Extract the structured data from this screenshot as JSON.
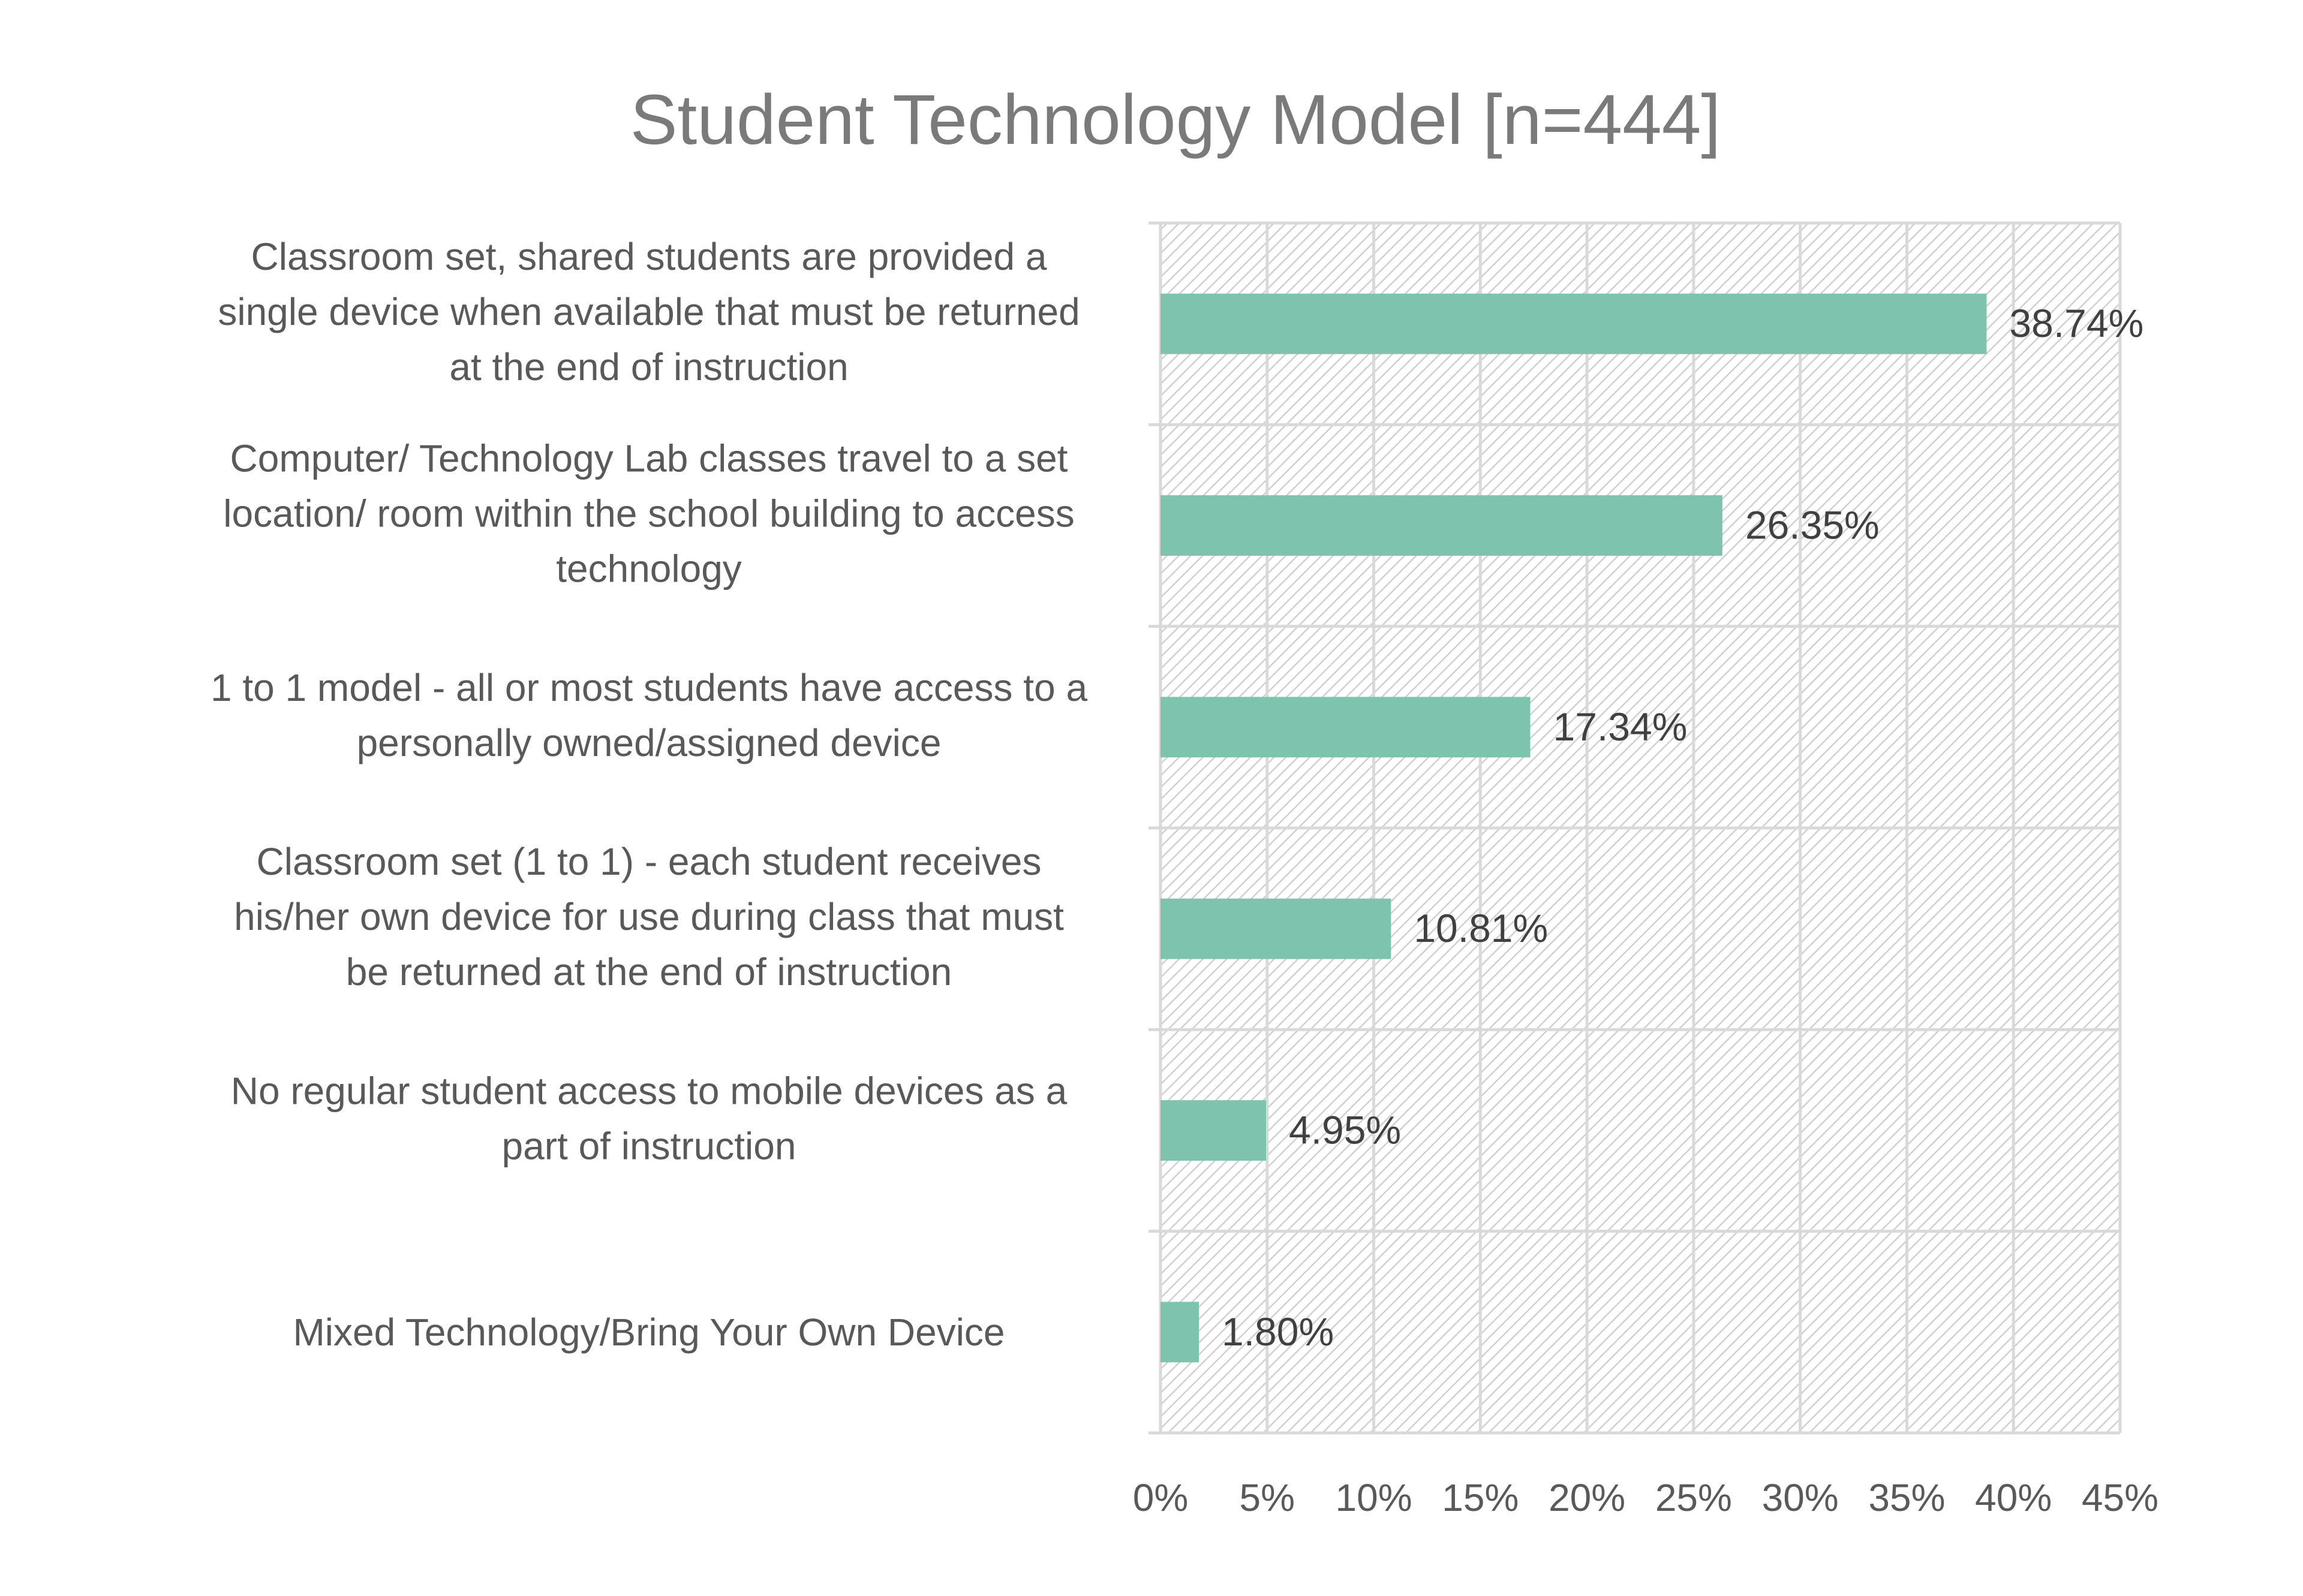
{
  "chart_data": {
    "type": "bar",
    "orientation": "horizontal",
    "title": "Student Technology Model [n=444]",
    "xlabel": "",
    "ylabel": "",
    "categories": [
      [
        "Classroom set, shared students are provided a",
        "single device when available that must be returned",
        "at the end of instruction"
      ],
      [
        "Computer/ Technology Lab classes travel to a set",
        "location/ room within the school building to access",
        "technology"
      ],
      [
        "1 to 1 model - all or most students have access to a",
        "personally owned/assigned device"
      ],
      [
        "Classroom set (1 to 1) - each student receives",
        "his/her own device for use during class that must",
        "be returned at the end of instruction"
      ],
      [
        "No regular student access to mobile devices as a",
        "part of instruction"
      ],
      [
        "Mixed Technology/Bring Your Own Device"
      ]
    ],
    "values": [
      38.74,
      26.35,
      17.34,
      10.81,
      4.95,
      1.8
    ],
    "data_labels": [
      "38.74%",
      "26.35%",
      "17.34%",
      "10.81%",
      "4.95%",
      "1.80%"
    ],
    "xlim": [
      0,
      45
    ],
    "x_ticks": [
      0,
      5,
      10,
      15,
      20,
      25,
      30,
      35,
      40,
      45
    ],
    "x_tick_labels": [
      "0%",
      "5%",
      "10%",
      "15%",
      "20%",
      "25%",
      "30%",
      "35%",
      "40%",
      "45%"
    ],
    "grid": true,
    "plot_background": "diagonal-hatch",
    "colors": {
      "bar": "#7dc3ae",
      "grid": "#d9d9d9",
      "hatch": "#d0d0d0",
      "title": "#7a7a7a",
      "text": "#595959"
    }
  }
}
